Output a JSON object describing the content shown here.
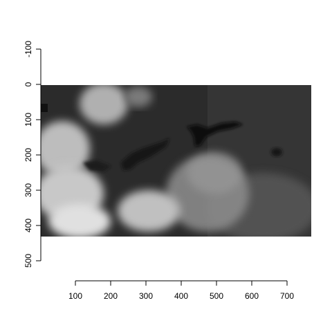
{
  "chart_data": {
    "type": "heatmap",
    "description_free": true,
    "image_extent": {
      "x": [
        0,
        760
      ],
      "y": [
        0,
        430
      ]
    },
    "x_axis": {
      "ticks": [
        100,
        200,
        300,
        400,
        500,
        600,
        700
      ],
      "labels": [
        "100",
        "200",
        "300",
        "400",
        "500",
        "600",
        "700"
      ],
      "range": [
        100,
        700
      ]
    },
    "y_axis": {
      "ticks": [
        -100,
        0,
        100,
        200,
        300,
        400,
        500
      ],
      "labels": [
        "-100",
        "0",
        "100",
        "200",
        "300",
        "400",
        "500"
      ],
      "range": [
        -100,
        500
      ],
      "reversed": true
    },
    "colors": {
      "background": "#ffffff",
      "axis": "#000000",
      "raster_dark": "#1a1a1a",
      "raster_mid": "#3a3a3a",
      "cloud": "#e8e8e8",
      "water": "#0a0a0a"
    },
    "grid": false,
    "legend": "none"
  }
}
